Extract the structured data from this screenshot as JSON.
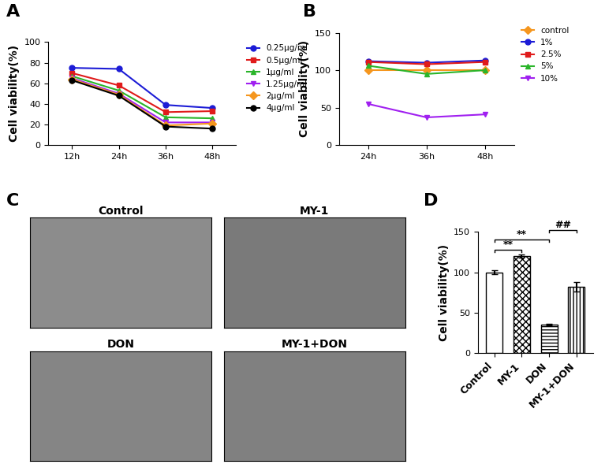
{
  "chart_data": [
    {
      "panel": "A",
      "type": "line",
      "y_label": "Cell viability(%)",
      "categories": [
        "12h",
        "24h",
        "36h",
        "48h"
      ],
      "ylim": [
        0,
        100
      ],
      "yticks": [
        0,
        20,
        40,
        60,
        80,
        100
      ],
      "legend": "upper left",
      "series": [
        {
          "name": "0.25μg/ml",
          "color": "#1c1cd6",
          "marker": "circle",
          "values": [
            75,
            74,
            39,
            36
          ]
        },
        {
          "name": "0.5μg/ml",
          "color": "#e01b1b",
          "marker": "square",
          "values": [
            70,
            58,
            32,
            33
          ]
        },
        {
          "name": "1μg/ml",
          "color": "#2ab52a",
          "marker": "triangle_up",
          "values": [
            67,
            53,
            27,
            26
          ]
        },
        {
          "name": "1.25μg/ml",
          "color": "#a020f0",
          "marker": "triangle_down",
          "values": [
            65,
            50,
            22,
            22
          ]
        },
        {
          "name": "2μg/ml",
          "color": "#f5961e",
          "marker": "diamond",
          "values": [
            64,
            49,
            19,
            21
          ]
        },
        {
          "name": "4μg/ml",
          "color": "#000000",
          "marker": "circle",
          "values": [
            63,
            48,
            18,
            16
          ]
        }
      ]
    },
    {
      "panel": "B",
      "type": "line",
      "y_label": "Cell viability(%)",
      "categories": [
        "24h",
        "36h",
        "48h"
      ],
      "ylim": [
        0,
        150
      ],
      "yticks": [
        0,
        50,
        100,
        150
      ],
      "legend": "upper left",
      "series": [
        {
          "name": "control",
          "color": "#f5961e",
          "marker": "diamond",
          "values": [
            100,
            100,
            100
          ]
        },
        {
          "name": "1%",
          "color": "#1c1cd6",
          "marker": "circle",
          "values": [
            112,
            110,
            113
          ]
        },
        {
          "name": "2.5%",
          "color": "#e01b1b",
          "marker": "square",
          "values": [
            111,
            108,
            111
          ]
        },
        {
          "name": "5%",
          "color": "#2ab52a",
          "marker": "triangle_up",
          "values": [
            106,
            95,
            100
          ]
        },
        {
          "name": "10%",
          "color": "#a020f0",
          "marker": "triangle_down",
          "values": [
            55,
            37,
            41
          ]
        }
      ]
    },
    {
      "panel": "D",
      "type": "bar",
      "y_label": "Cell viability(%)",
      "categories": [
        "Control",
        "MY-1",
        "DON",
        "MY-1+DON"
      ],
      "values": [
        100,
        120,
        35,
        82
      ],
      "errors": [
        2,
        2,
        1,
        6
      ],
      "color": "#ffffff",
      "ylim": [
        0,
        150
      ],
      "yticks": [
        0,
        50,
        100,
        150
      ],
      "annotations": [
        {
          "text": "**",
          "from": "Control",
          "to": "MY-1"
        },
        {
          "text": "**",
          "from": "Control",
          "to": "DON"
        },
        {
          "text": "##",
          "from": "DON",
          "to": "MY-1+DON"
        }
      ]
    }
  ],
  "image_panel": {
    "panel": "C",
    "titles": [
      "Control",
      "MY-1",
      "DON",
      "MY-1+DON"
    ]
  }
}
